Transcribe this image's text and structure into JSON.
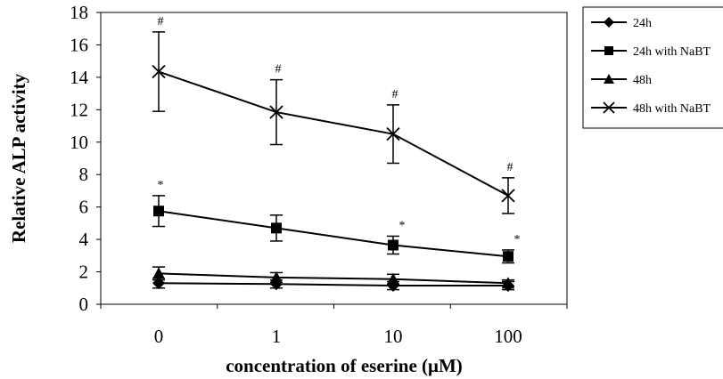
{
  "chart_data": {
    "type": "line",
    "xlabel": "concentration of eserine (μM)",
    "ylabel": "Relative ALP activity",
    "categories": [
      "0",
      "1",
      "10",
      "100"
    ],
    "ylim": [
      0,
      18
    ],
    "yticks": [
      0,
      2,
      4,
      6,
      8,
      10,
      12,
      14,
      16,
      18
    ],
    "grid": false,
    "legend_position": "right",
    "series": [
      {
        "name": "24h",
        "marker": "diamond",
        "values": [
          1.3,
          1.25,
          1.15,
          1.15
        ],
        "errors": [
          0.3,
          0.25,
          0.25,
          0.25
        ],
        "annotations": [
          "",
          "",
          "",
          ""
        ]
      },
      {
        "name": "24h with NaBT",
        "marker": "square",
        "values": [
          5.75,
          4.7,
          3.65,
          2.95
        ],
        "errors": [
          0.95,
          0.8,
          0.55,
          0.4
        ],
        "annotations": [
          "*",
          "",
          "*",
          "*"
        ]
      },
      {
        "name": "48h",
        "marker": "triangle",
        "values": [
          1.9,
          1.65,
          1.55,
          1.3
        ],
        "errors": [
          0.4,
          0.3,
          0.3,
          0.2
        ],
        "annotations": [
          "",
          "",
          "",
          ""
        ]
      },
      {
        "name": "48h with NaBT",
        "marker": "x",
        "values": [
          14.35,
          11.85,
          10.5,
          6.7
        ],
        "errors": [
          2.45,
          2.0,
          1.8,
          1.1
        ],
        "annotations": [
          "#",
          "#",
          "#",
          "#"
        ]
      }
    ]
  }
}
